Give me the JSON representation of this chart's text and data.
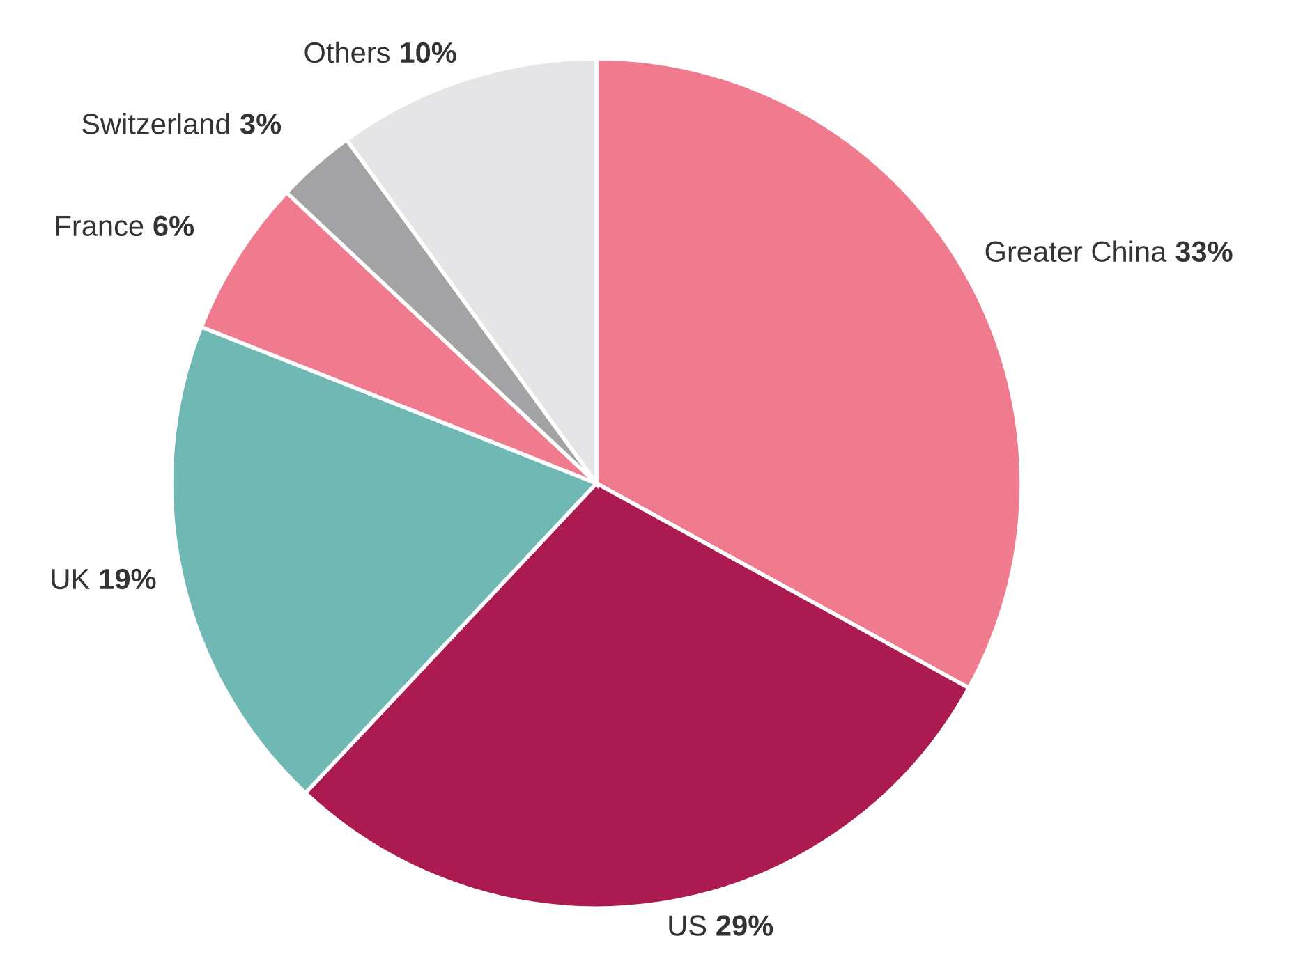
{
  "chart_data": {
    "type": "pie",
    "categories": [
      "Greater China",
      "US",
      "UK",
      "France",
      "Switzerland",
      "Others"
    ],
    "values": [
      33,
      29,
      19,
      6,
      3,
      10
    ],
    "value_labels": [
      "33%",
      "29%",
      "19%",
      "6%",
      "3%",
      "10%"
    ],
    "colors": [
      "#f07a8e",
      "#ab1a50",
      "#6fb8b4",
      "#f07a8e",
      "#a3a3a5",
      "#e5e5e8"
    ]
  }
}
